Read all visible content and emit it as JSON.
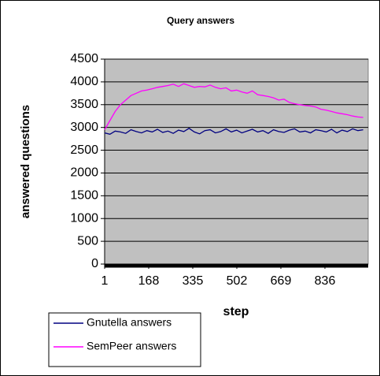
{
  "chart_data": {
    "type": "line",
    "title": "Query answers",
    "x_label": "step",
    "y_label": "answered questions",
    "x": [
      1,
      21,
      41,
      61,
      81,
      101,
      121,
      141,
      161,
      181,
      201,
      221,
      241,
      261,
      281,
      301,
      321,
      341,
      361,
      381,
      401,
      421,
      441,
      461,
      481,
      501,
      521,
      541,
      561,
      581,
      601,
      621,
      641,
      661,
      681,
      701,
      721,
      741,
      761,
      781,
      801,
      821,
      841,
      861,
      881,
      901,
      921,
      941,
      961,
      981
    ],
    "series": [
      {
        "name": "Gnutella answers",
        "color": "#000080",
        "values": [
          2880,
          2850,
          2920,
          2900,
          2870,
          2950,
          2910,
          2880,
          2930,
          2900,
          2960,
          2890,
          2920,
          2870,
          2940,
          2910,
          2980,
          2900,
          2860,
          2930,
          2950,
          2880,
          2910,
          2970,
          2900,
          2940,
          2880,
          2920,
          2960,
          2900,
          2930,
          2870,
          2950,
          2910,
          2890,
          2940,
          2970,
          2900,
          2920,
          2880,
          2950,
          2930,
          2900,
          2960,
          2880,
          2940,
          2910,
          2970,
          2930,
          2950
        ]
      },
      {
        "name": "SemPeer answers",
        "color": "#ff00ff",
        "values": [
          2950,
          3150,
          3350,
          3500,
          3600,
          3700,
          3750,
          3800,
          3820,
          3850,
          3880,
          3900,
          3920,
          3950,
          3900,
          3960,
          3920,
          3880,
          3900,
          3890,
          3930,
          3880,
          3850,
          3870,
          3800,
          3820,
          3780,
          3750,
          3800,
          3720,
          3700,
          3680,
          3650,
          3600,
          3620,
          3550,
          3520,
          3500,
          3480,
          3470,
          3450,
          3400,
          3380,
          3350,
          3320,
          3300,
          3280,
          3250,
          3230,
          3220
        ]
      }
    ],
    "xlim": [
      1,
      1000
    ],
    "xticks": [
      1,
      168,
      335,
      502,
      669,
      836
    ],
    "ylim": [
      0,
      4500
    ],
    "yticks": [
      0,
      500,
      1000,
      1500,
      2000,
      2500,
      3000,
      3500,
      4000,
      4500
    ],
    "grid": true,
    "plot_background": "#c0c0c0"
  }
}
